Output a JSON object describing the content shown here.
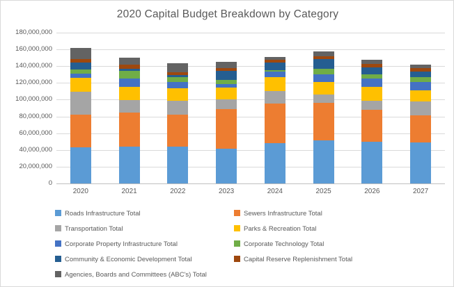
{
  "chart_data": {
    "type": "bar",
    "stacked": true,
    "title": "2020 Capital Budget Breakdown by Category",
    "categories": [
      "2020",
      "2021",
      "2022",
      "2023",
      "2024",
      "2025",
      "2026",
      "2027"
    ],
    "xlabel": "",
    "ylabel": "",
    "ylim": [
      0,
      180000000
    ],
    "y_tick_step": 20000000,
    "y_tick_labels": [
      "0",
      "20,000,000",
      "40,000,000",
      "60,000,000",
      "80,000,000",
      "100,000,000",
      "120,000,000",
      "140,000,000",
      "160,000,000",
      "180,000,000"
    ],
    "grid": true,
    "legend_position": "bottom",
    "text_color": "#595959",
    "gridline_color": "#d9d9d9",
    "series": [
      {
        "name": "Roads Infrastructure Total",
        "color": "#5B9BD5",
        "values": [
          43000000,
          44000000,
          44000000,
          41500000,
          48000000,
          51500000,
          50000000,
          49000000
        ]
      },
      {
        "name": "Sewers Infrastructure Total",
        "color": "#ED7D31",
        "values": [
          39500000,
          40500000,
          38500000,
          47000000,
          47500000,
          45000000,
          38000000,
          32000000
        ]
      },
      {
        "name": "Transportation Total",
        "color": "#A5A5A5",
        "values": [
          27000000,
          15000000,
          16000000,
          11500000,
          15000000,
          9500000,
          10500000,
          16500000
        ]
      },
      {
        "name": "Parks & Recreation Total",
        "color": "#FFC000",
        "values": [
          16500000,
          16000000,
          15500000,
          14500000,
          16000000,
          15500000,
          16500000,
          14000000
        ]
      },
      {
        "name": "Corporate Property  Infrastructure Total",
        "color": "#4472C4",
        "values": [
          5000000,
          10000000,
          7500000,
          4500000,
          7000000,
          8500000,
          10500000,
          9500000
        ]
      },
      {
        "name": "Corporate Technology Total",
        "color": "#70AD47",
        "values": [
          5000000,
          9000000,
          5500000,
          5000000,
          2000000,
          6500000,
          5000000,
          5500000
        ]
      },
      {
        "name": "Community & Economic Development Total",
        "color": "#255E91",
        "values": [
          8500000,
          2000000,
          2000000,
          10000000,
          8500000,
          12000000,
          8000000,
          7000000
        ]
      },
      {
        "name": "Capital Reserve Replenishment Total",
        "color": "#9E480E",
        "values": [
          4000000,
          5000000,
          3500000,
          3500000,
          3500000,
          3500000,
          4500000,
          4000000
        ]
      },
      {
        "name": "Agencies, Boards and Committees (ABC's) Total",
        "color": "#636363",
        "values": [
          13000000,
          9000000,
          11000000,
          7500000,
          3500000,
          5500000,
          4500000,
          4000000
        ]
      }
    ]
  }
}
